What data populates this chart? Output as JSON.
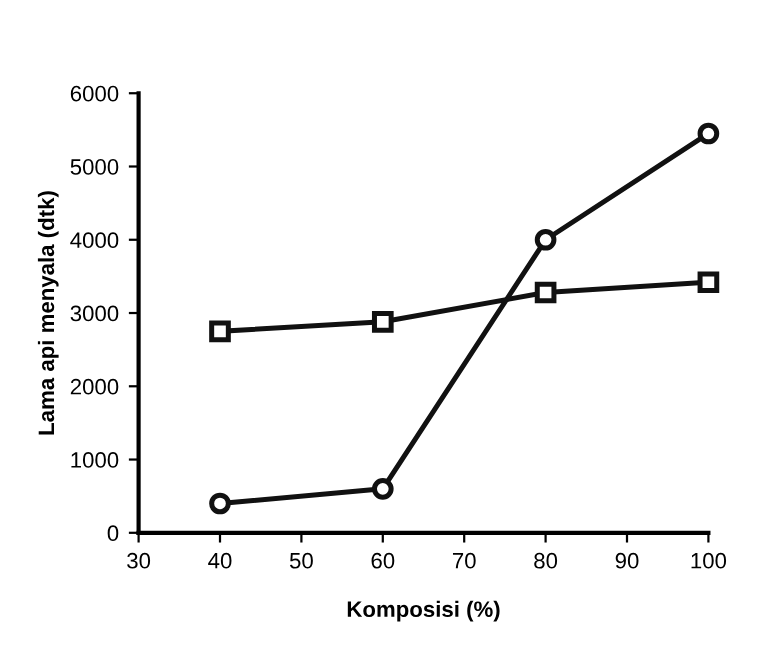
{
  "chart_data": {
    "type": "line",
    "xlabel": "Komposisi (%)",
    "ylabel": "Lama api menyala (dtk)",
    "x": [
      40,
      60,
      80,
      100
    ],
    "series": [
      {
        "color": "#111111",
        "values": [
          400,
          600,
          4000,
          5450
        ],
        "marker": "circle"
      },
      {
        "color": "#111111",
        "values": [
          2750,
          2880,
          3280,
          3420
        ],
        "marker": "square"
      }
    ],
    "xlim": [
      30,
      100
    ],
    "xticks": [
      30,
      40,
      50,
      60,
      70,
      80,
      90,
      100
    ],
    "ylim": [
      0,
      6000
    ],
    "yticks": [
      0,
      1000,
      2000,
      3000,
      4000,
      5000,
      6000
    ],
    "grid": false,
    "legend": false,
    "line_style": "solid"
  }
}
